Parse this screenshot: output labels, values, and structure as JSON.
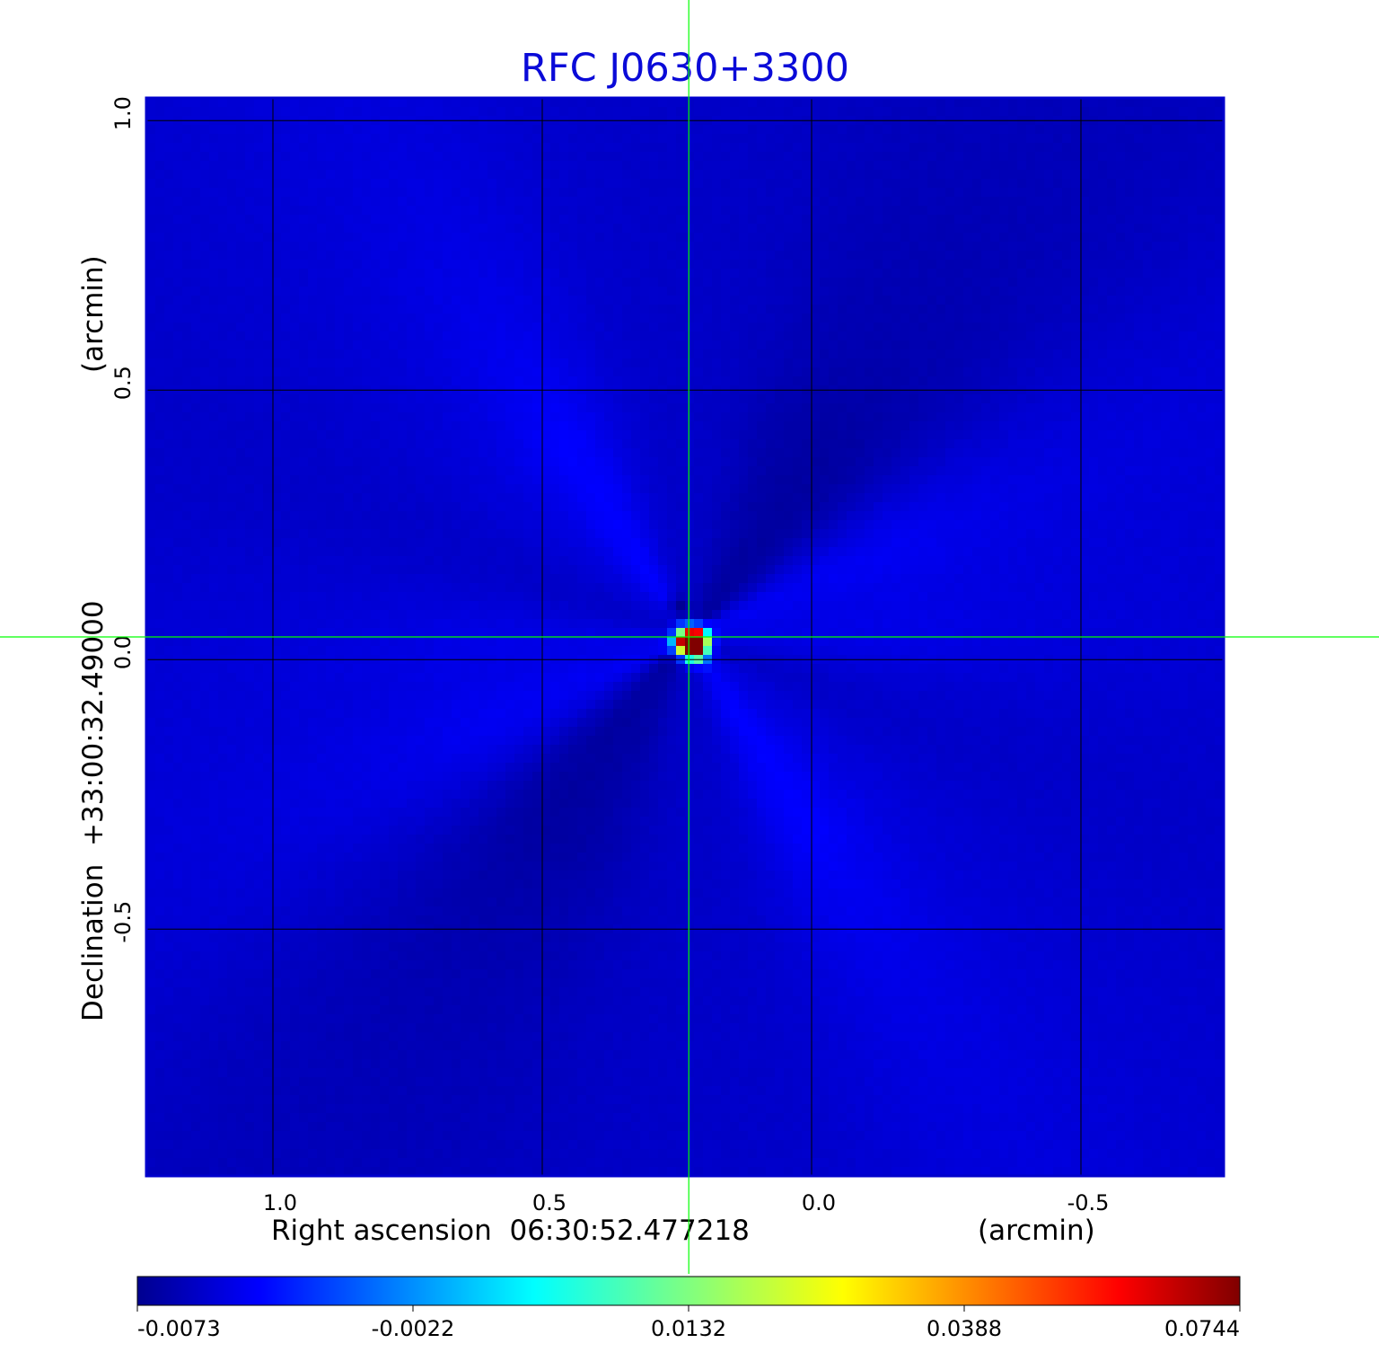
{
  "chart_data": {
    "type": "heatmap",
    "title": "RFC J0630+3300",
    "xlabel": "Right ascension  06:30:52.477218",
    "xunit": "(arcmin)",
    "ylabel": "Declination  +33:00:32.49000",
    "yunit": "(arcmin)",
    "xlim": [
      1.235,
      -0.765
    ],
    "ylim": [
      -0.958,
      1.042
    ],
    "x_ticks": [
      1.0,
      0.5,
      0.0,
      -0.5
    ],
    "x_tick_labels": [
      "1.0",
      "0.5",
      "0.0",
      "-0.5"
    ],
    "y_ticks": [
      -0.5,
      0.0,
      0.5,
      1.0
    ],
    "y_tick_labels": [
      "-0.5",
      "0.0",
      "0.5",
      "1.0"
    ],
    "grid": true,
    "crosshair": {
      "x": 0.228,
      "y": 0.042,
      "color": "#00ff00"
    },
    "colormap": "jet",
    "colorbar": {
      "orientation": "horizontal",
      "min": -0.0073,
      "max": 0.0744,
      "ticks": [
        -0.0073,
        -0.0022,
        0.0132,
        0.0388,
        0.0744
      ],
      "tick_labels": [
        "-0.0073",
        "-0.0022",
        "0.0132",
        "0.0388",
        "0.0744"
      ]
    },
    "background_level": -0.0015,
    "features": [
      {
        "kind": "peak",
        "x": 0.215,
        "y": 0.038,
        "value": 0.0744
      },
      {
        "kind": "peak",
        "x": 0.235,
        "y": 0.032,
        "value": 0.058
      },
      {
        "kind": "peak",
        "x": 0.215,
        "y": 0.018,
        "value": 0.05
      },
      {
        "kind": "trough",
        "x": 0.25,
        "y": 0.095,
        "value": -0.0073
      }
    ],
    "colors": {
      "title": "#0a0ad8",
      "frame": "#0000cc",
      "grid": "#000000",
      "crosshair": "#00ff00",
      "labels": "#000000"
    }
  }
}
